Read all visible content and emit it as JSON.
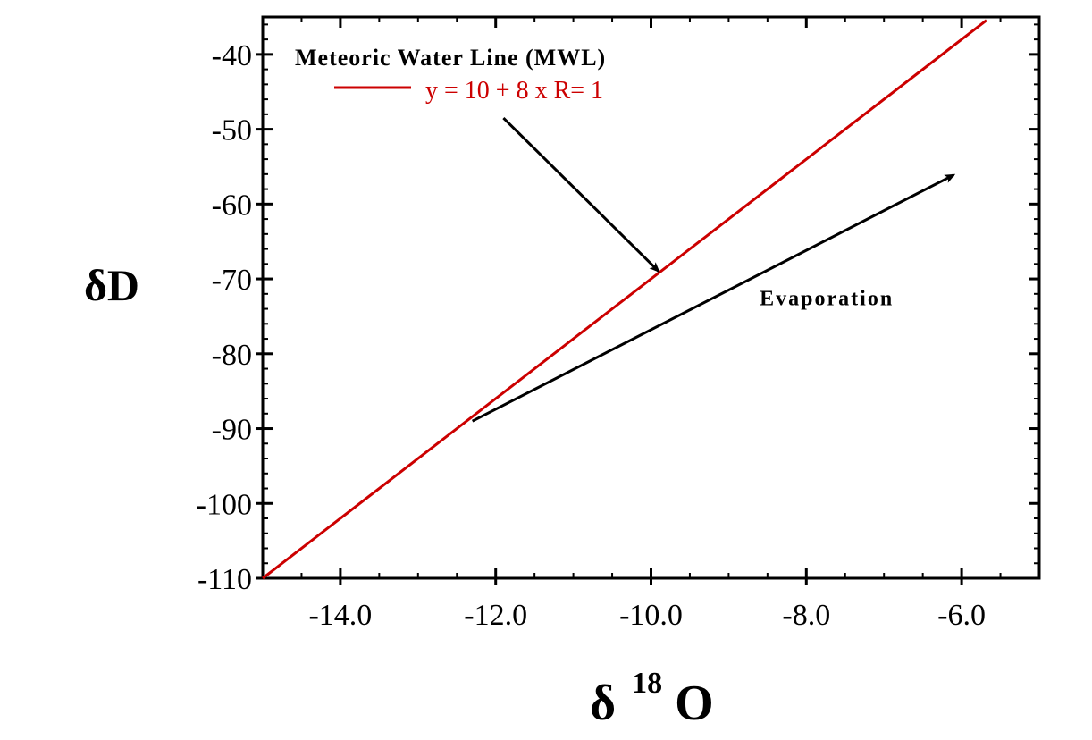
{
  "chart_data": {
    "type": "line",
    "title": "",
    "xlabel": "δ",
    "xlabel_superscript": "18",
    "xlabel_suffix": "O",
    "ylabel": "δD",
    "xlim": [
      -15.0,
      -5.0
    ],
    "ylim": [
      -110,
      -35
    ],
    "x_ticks": [
      -14.0,
      -12.0,
      -10.0,
      -8.0,
      -6.0
    ],
    "x_tick_labels": [
      "-14.0",
      "-12.0",
      "-10.0",
      "-8.0",
      "-6.0"
    ],
    "y_ticks": [
      -40,
      -50,
      -60,
      -70,
      -80,
      -90,
      -100,
      -110
    ],
    "y_tick_labels": [
      "-40",
      "-50",
      "-60",
      "-70",
      "-80",
      "-90",
      "-100",
      "-110"
    ],
    "grid": false,
    "legend_title": "Meteoric Water Line (MWL)",
    "legend_placement": "top-left",
    "series": [
      {
        "name": "y = 10 + 8 x R= 1",
        "color": "#cc0000",
        "x": [
          -15.0,
          -5.68
        ],
        "y": [
          -110.0,
          -35.44
        ]
      }
    ],
    "annotations": [
      {
        "text": "Evaporation",
        "at": [
          -8.6,
          -73.5
        ],
        "arrow": {
          "from": [
            -12.3,
            -89.0
          ],
          "to": [
            -6.1,
            -56.1
          ]
        },
        "color": "#000000"
      },
      {
        "text": "",
        "arrow": {
          "from": [
            -11.9,
            -48.5
          ],
          "to": [
            -9.9,
            -69.0
          ]
        },
        "color": "#000000"
      }
    ]
  }
}
